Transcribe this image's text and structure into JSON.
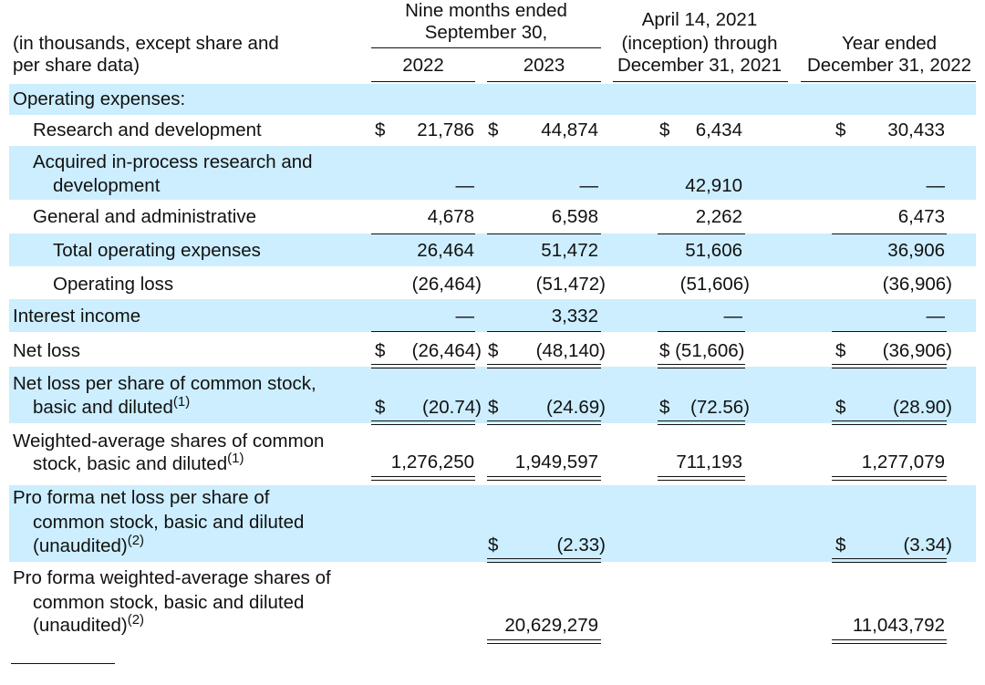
{
  "header": {
    "stub_line1": "(in thousands, except share and",
    "stub_line2": "per share data)",
    "nine_months_line1": "Nine months ended",
    "nine_months_line2": "September 30,",
    "col_2022": "2022",
    "col_2023": "2023",
    "inception_line1": "April 14, 2021",
    "inception_line2": "(inception) through",
    "inception_line3": "December 31, 2021",
    "year_line1": "Year ended",
    "year_line2": "December 31, 2022"
  },
  "rows": {
    "opex_header": "Operating expenses:",
    "rd": {
      "label": "Research and development",
      "d1": "$",
      "v1": "21,786",
      "d2": "$",
      "v2": "44,874",
      "d3": "$",
      "v3": "6,434",
      "d4": "$",
      "v4": "30,433"
    },
    "iprd": {
      "label1": "Acquired in-process research and",
      "label2": "development",
      "v1": "—",
      "v2": "—",
      "v3": "42,910",
      "v4": "—"
    },
    "ga": {
      "label": "General and administrative",
      "v1": "4,678",
      "v2": "6,598",
      "v3": "2,262",
      "v4": "6,473"
    },
    "total_opex": {
      "label": "Total operating expenses",
      "v1": "26,464",
      "v2": "51,472",
      "v3": "51,606",
      "v4": "36,906"
    },
    "op_loss": {
      "label": "Operating loss",
      "v1": "(26,464)",
      "v2": "(51,472)",
      "v3": "(51,606)",
      "v4": "(36,906)"
    },
    "interest": {
      "label": "Interest income",
      "v1": "—",
      "v2": "3,332",
      "v3": "—",
      "v4": "—"
    },
    "net_loss": {
      "label": "Net loss",
      "d1": "$",
      "v1": "(26,464)",
      "d2": "$",
      "v2": "(48,140)",
      "v3": "$ (51,606)",
      "d4": "$",
      "v4": "(36,906)"
    },
    "nlps": {
      "label1": "Net loss per share of common stock,",
      "label2": "basic and diluted",
      "note": "(1)",
      "d1": "$",
      "v1": "(20.74)",
      "d2": "$",
      "v2": "(24.69)",
      "d3": "$",
      "v3": "(72.56)",
      "d4": "$",
      "v4": "(28.90)"
    },
    "was": {
      "label1": "Weighted-average shares of common",
      "label2": "stock, basic and diluted",
      "note": "(1)",
      "v1": "1,276,250",
      "v2": "1,949,597",
      "v3": "711,193",
      "v4": "1,277,079"
    },
    "pf_nlps": {
      "label1": "Pro forma net loss per share of",
      "label2": "common stock, basic and diluted",
      "label3": "(unaudited)",
      "note": "(2)",
      "d2": "$",
      "v2": "(2.33)",
      "d4": "$",
      "v4": "(3.34)"
    },
    "pf_was": {
      "label1": "Pro forma weighted-average shares of",
      "label2": "common stock, basic and diluted",
      "label3": "(unaudited)",
      "note": "(2)",
      "v2": "20,629,279",
      "v4": "11,043,792"
    }
  }
}
